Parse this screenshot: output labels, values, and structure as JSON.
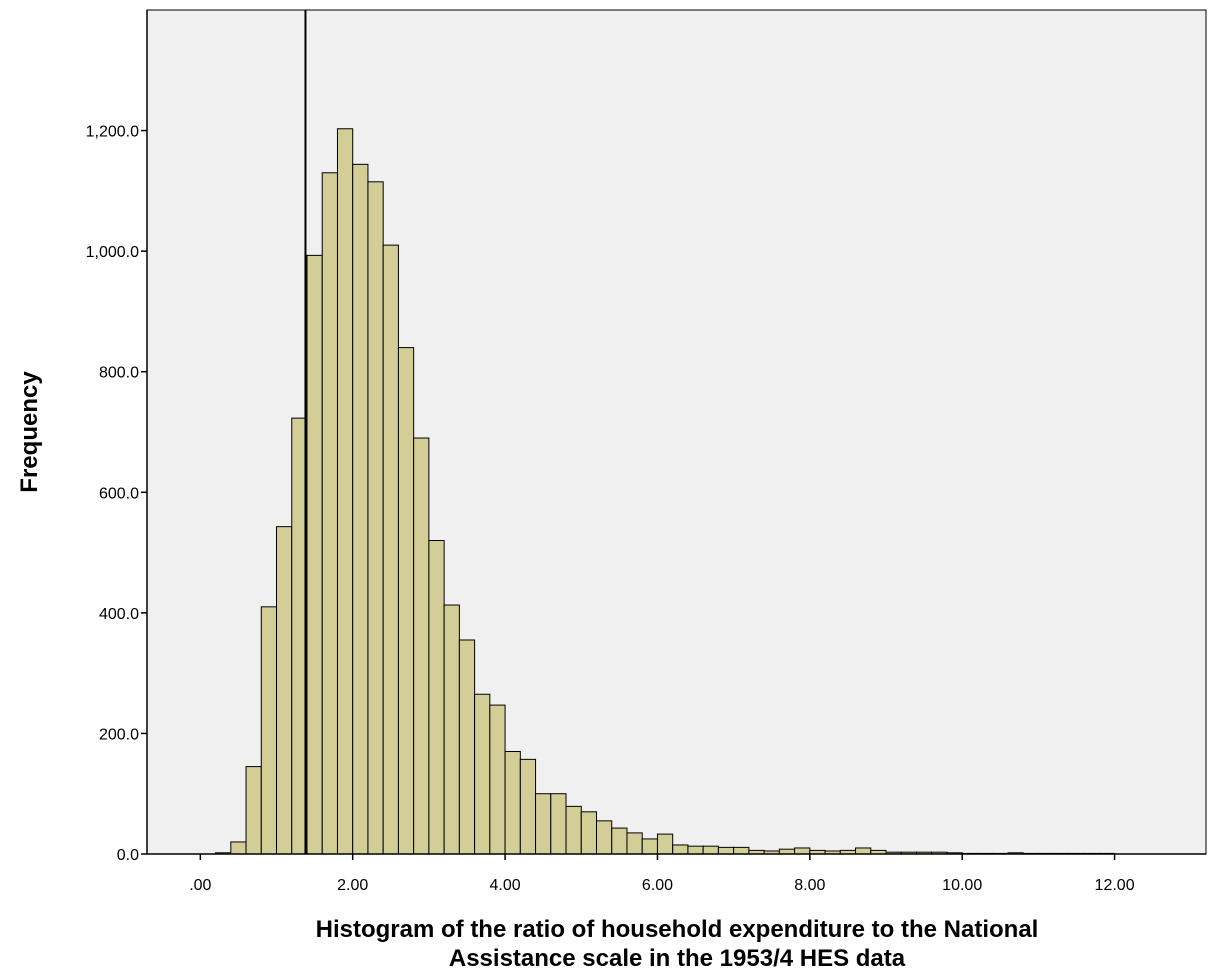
{
  "chart_data": {
    "type": "bar",
    "title": "",
    "xlabel": "Histogram of the ratio of household expenditure to the National Assistance scale in the 1953/4 HES data",
    "xlabel_lines": [
      "Histogram of the ratio of household expenditure to the National",
      "Assistance scale in the 1953/4 HES data"
    ],
    "ylabel": "Frequency",
    "xlim": [
      -0.7,
      13.2
    ],
    "ylim": [
      0,
      1400
    ],
    "bin_width": 0.2,
    "x_ticks": [
      0,
      2,
      4,
      6,
      8,
      10,
      12
    ],
    "x_tick_labels": [
      ".00",
      "2.00",
      "4.00",
      "6.00",
      "8.00",
      "10.00",
      "12.00"
    ],
    "y_ticks": [
      0,
      200,
      400,
      600,
      800,
      1000,
      1200
    ],
    "y_tick_labels": [
      "0.0",
      "200.0",
      "400.0",
      "600.0",
      "800.0",
      "1,000.0",
      "1,200.0"
    ],
    "bin_starts": [
      0.2,
      0.4,
      0.6,
      0.8,
      1.0,
      1.2,
      1.4,
      1.6,
      1.8,
      2.0,
      2.2,
      2.4,
      2.6,
      2.8,
      3.0,
      3.2,
      3.4,
      3.6,
      3.8,
      4.0,
      4.2,
      4.4,
      4.6,
      4.8,
      5.0,
      5.2,
      5.4,
      5.6,
      5.8,
      6.0,
      6.2,
      6.4,
      6.6,
      6.8,
      7.0,
      7.2,
      7.4,
      7.6,
      7.8,
      8.0,
      8.2,
      8.4,
      8.6,
      8.8,
      9.0,
      9.2,
      9.4,
      9.6,
      9.8,
      10.0,
      10.2,
      10.4,
      10.6,
      10.8,
      11.0,
      11.2,
      11.4,
      11.6,
      11.8
    ],
    "values": [
      2,
      20,
      145,
      410,
      543,
      723,
      993,
      1130,
      1203,
      1144,
      1115,
      1010,
      840,
      690,
      520,
      413,
      355,
      265,
      247,
      170,
      157,
      100,
      100,
      79,
      70,
      55,
      43,
      35,
      25,
      33,
      15,
      13,
      13,
      11,
      11,
      6,
      5,
      8,
      10,
      6,
      5,
      6,
      10,
      6,
      3,
      3,
      3,
      3,
      2,
      1,
      1,
      1,
      2,
      1,
      1,
      1,
      1,
      1,
      1
    ],
    "reference_line_x": 1.38,
    "grid": false,
    "legend": "none",
    "colors": {
      "plot_background": "#f0f0f0",
      "bar_fill": "#d3ce97",
      "bar_stroke": "#000000",
      "axis": "#000000"
    }
  }
}
